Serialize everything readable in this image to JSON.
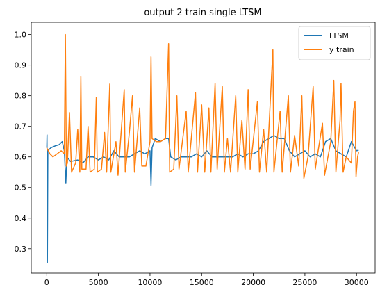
{
  "chart_data": {
    "type": "line",
    "title": "output 2 train single LTSM",
    "xlabel": "",
    "ylabel": "",
    "xlim": [
      -1500,
      31800
    ],
    "ylim": [
      0.22,
      1.04
    ],
    "xticks": [
      0,
      5000,
      10000,
      15000,
      20000,
      25000,
      30000
    ],
    "yticks": [
      0.3,
      0.4,
      0.5,
      0.6,
      0.7,
      0.8,
      0.9,
      1.0
    ],
    "xtick_labels": [
      "0",
      "5000",
      "10000",
      "15000",
      "20000",
      "25000",
      "30000"
    ],
    "ytick_labels": [
      "0.3",
      "0.4",
      "0.5",
      "0.6",
      "0.7",
      "0.8",
      "0.9",
      "1.0"
    ],
    "grid": false,
    "legend": "top-right",
    "series": [
      {
        "name": "LTSM",
        "color": "#1f77b4",
        "points": [
          [
            0,
            0.63
          ],
          [
            30,
            0.672
          ],
          [
            60,
            0.255
          ],
          [
            110,
            0.62
          ],
          [
            400,
            0.63
          ],
          [
            800,
            0.636
          ],
          [
            1200,
            0.64
          ],
          [
            1500,
            0.65
          ],
          [
            1700,
            0.62
          ],
          [
            1850,
            0.515
          ],
          [
            1950,
            0.6
          ],
          [
            2300,
            0.585
          ],
          [
            3000,
            0.59
          ],
          [
            3500,
            0.58
          ],
          [
            4000,
            0.6
          ],
          [
            4500,
            0.6
          ],
          [
            5000,
            0.59
          ],
          [
            5500,
            0.6
          ],
          [
            6000,
            0.59
          ],
          [
            6500,
            0.62
          ],
          [
            7000,
            0.6
          ],
          [
            7500,
            0.6
          ],
          [
            8000,
            0.6
          ],
          [
            8500,
            0.61
          ],
          [
            9000,
            0.62
          ],
          [
            9500,
            0.61
          ],
          [
            10000,
            0.62
          ],
          [
            10100,
            0.507
          ],
          [
            10200,
            0.63
          ],
          [
            10500,
            0.66
          ],
          [
            11000,
            0.65
          ],
          [
            11500,
            0.66
          ],
          [
            11800,
            0.66
          ],
          [
            12000,
            0.6
          ],
          [
            12500,
            0.59
          ],
          [
            13000,
            0.6
          ],
          [
            13500,
            0.6
          ],
          [
            14000,
            0.6
          ],
          [
            14500,
            0.61
          ],
          [
            15000,
            0.6
          ],
          [
            15500,
            0.62
          ],
          [
            16000,
            0.6
          ],
          [
            16500,
            0.6
          ],
          [
            17000,
            0.6
          ],
          [
            17500,
            0.6
          ],
          [
            18000,
            0.6
          ],
          [
            18500,
            0.61
          ],
          [
            19000,
            0.6
          ],
          [
            19500,
            0.61
          ],
          [
            20000,
            0.61
          ],
          [
            20500,
            0.62
          ],
          [
            21000,
            0.65
          ],
          [
            21500,
            0.66
          ],
          [
            22000,
            0.67
          ],
          [
            22500,
            0.66
          ],
          [
            23000,
            0.66
          ],
          [
            23500,
            0.62
          ],
          [
            24000,
            0.6
          ],
          [
            24500,
            0.61
          ],
          [
            25000,
            0.62
          ],
          [
            25500,
            0.6
          ],
          [
            26000,
            0.61
          ],
          [
            26500,
            0.6
          ],
          [
            27000,
            0.65
          ],
          [
            27500,
            0.66
          ],
          [
            28000,
            0.62
          ],
          [
            28500,
            0.61
          ],
          [
            29000,
            0.6
          ],
          [
            29500,
            0.65
          ],
          [
            30000,
            0.62
          ],
          [
            30200,
            0.622
          ]
        ]
      },
      {
        "name": "y train",
        "color": "#ff7f0e",
        "points": [
          [
            0,
            0.63
          ],
          [
            300,
            0.61
          ],
          [
            600,
            0.6
          ],
          [
            1000,
            0.61
          ],
          [
            1400,
            0.62
          ],
          [
            1700,
            0.61
          ],
          [
            1800,
            1.0
          ],
          [
            1900,
            0.57
          ],
          [
            2000,
            0.58
          ],
          [
            2200,
            0.745
          ],
          [
            2400,
            0.55
          ],
          [
            2800,
            0.58
          ],
          [
            3000,
            0.69
          ],
          [
            3200,
            0.55
          ],
          [
            3300,
            0.862
          ],
          [
            3400,
            0.56
          ],
          [
            3800,
            0.56
          ],
          [
            4000,
            0.7
          ],
          [
            4200,
            0.55
          ],
          [
            4600,
            0.56
          ],
          [
            4800,
            0.795
          ],
          [
            4900,
            0.55
          ],
          [
            5300,
            0.56
          ],
          [
            5600,
            0.68
          ],
          [
            5800,
            0.55
          ],
          [
            6100,
            0.838
          ],
          [
            6200,
            0.55
          ],
          [
            6700,
            0.65
          ],
          [
            6900,
            0.54
          ],
          [
            7500,
            0.82
          ],
          [
            7600,
            0.55
          ],
          [
            8000,
            0.68
          ],
          [
            8300,
            0.8
          ],
          [
            8500,
            0.55
          ],
          [
            9000,
            0.76
          ],
          [
            9200,
            0.57
          ],
          [
            9600,
            0.57
          ],
          [
            10000,
            0.65
          ],
          [
            10100,
            0.927
          ],
          [
            10200,
            0.66
          ],
          [
            10600,
            0.65
          ],
          [
            11000,
            0.65
          ],
          [
            11500,
            0.66
          ],
          [
            11800,
            0.97
          ],
          [
            11900,
            0.55
          ],
          [
            12300,
            0.56
          ],
          [
            12600,
            0.8
          ],
          [
            12800,
            0.56
          ],
          [
            13500,
            0.75
          ],
          [
            13700,
            0.55
          ],
          [
            14400,
            0.81
          ],
          [
            14600,
            0.55
          ],
          [
            15000,
            0.77
          ],
          [
            15300,
            0.55
          ],
          [
            15700,
            0.76
          ],
          [
            15900,
            0.55
          ],
          [
            16300,
            0.84
          ],
          [
            16500,
            0.56
          ],
          [
            17000,
            0.83
          ],
          [
            17200,
            0.55
          ],
          [
            17500,
            0.66
          ],
          [
            17800,
            0.55
          ],
          [
            18300,
            0.8
          ],
          [
            18500,
            0.55
          ],
          [
            18900,
            0.72
          ],
          [
            19200,
            0.56
          ],
          [
            19500,
            0.82
          ],
          [
            19700,
            0.56
          ],
          [
            20400,
            0.78
          ],
          [
            20600,
            0.55
          ],
          [
            21000,
            0.69
          ],
          [
            21300,
            0.55
          ],
          [
            21900,
            0.95
          ],
          [
            22000,
            0.55
          ],
          [
            22600,
            0.75
          ],
          [
            22800,
            0.55
          ],
          [
            23400,
            0.8
          ],
          [
            23600,
            0.55
          ],
          [
            24000,
            0.67
          ],
          [
            24400,
            0.57
          ],
          [
            24700,
            0.8
          ],
          [
            24900,
            0.53
          ],
          [
            25300,
            0.6
          ],
          [
            25800,
            0.83
          ],
          [
            26000,
            0.56
          ],
          [
            26700,
            0.71
          ],
          [
            26900,
            0.54
          ],
          [
            27500,
            0.65
          ],
          [
            27800,
            0.85
          ],
          [
            28000,
            0.55
          ],
          [
            28400,
            0.72
          ],
          [
            28500,
            0.84
          ],
          [
            28700,
            0.55
          ],
          [
            29000,
            0.6
          ],
          [
            29500,
            0.58
          ],
          [
            29700,
            0.75
          ],
          [
            29850,
            0.78
          ],
          [
            29950,
            0.535
          ],
          [
            30100,
            0.6
          ],
          [
            30200,
            0.615
          ]
        ]
      }
    ]
  }
}
